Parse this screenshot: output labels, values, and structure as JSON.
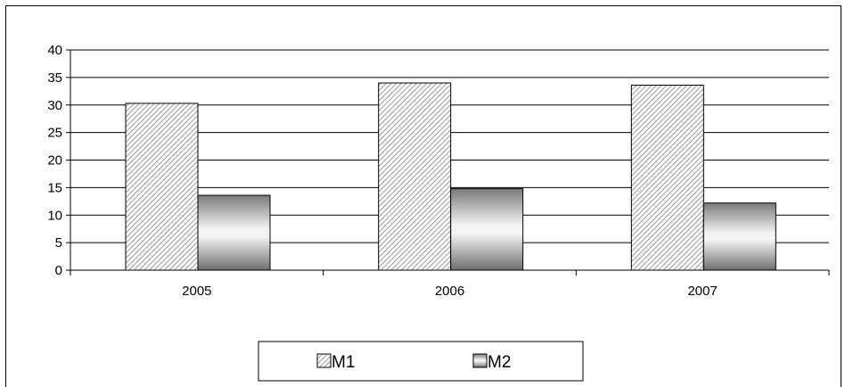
{
  "chart_data": {
    "type": "bar",
    "categories": [
      "2005",
      "2006",
      "2007"
    ],
    "series": [
      {
        "name": "M1",
        "values": [
          30.3,
          34.0,
          33.6
        ],
        "pattern": "diagonal-hatch",
        "color": "#bfbfbf"
      },
      {
        "name": "M2",
        "values": [
          13.6,
          14.8,
          12.2
        ],
        "pattern": "vertical-gradient",
        "color": "#7a7a7a"
      }
    ],
    "ylim": [
      0,
      40
    ],
    "yticks": [
      0,
      5,
      10,
      15,
      20,
      25,
      30,
      35,
      40
    ],
    "grid": true,
    "legend_position": "bottom",
    "title": "",
    "xlabel": "",
    "ylabel": ""
  }
}
